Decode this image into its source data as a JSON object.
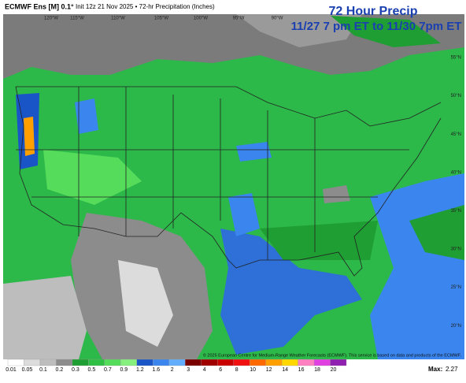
{
  "header": {
    "title": "ECMWF Ens [M] 0.1°",
    "subtitle": "Init 12z 21 Nov 2025 • 72-hr Precipitation (Inches)"
  },
  "overlay": {
    "title": "72 Hour Precip",
    "period": "11/27 7 pm ET to 11/30 7pm ET"
  },
  "longitudes": [
    "120°W",
    "115°W",
    "110°W",
    "105°W",
    "100°W",
    "95°W",
    "90°W"
  ],
  "latitudes": [
    "55°N",
    "50°N",
    "45°N",
    "40°N",
    "35°N",
    "30°N",
    "25°N",
    "20°N"
  ],
  "copyright": "© 2025 European Centre for Medium-Range Weather Forecasts (ECMWF). This service is based on data and products of the ECMWF.",
  "colorbar": [
    {
      "label": "0.01",
      "color": "#ffffff"
    },
    {
      "label": "0.05",
      "color": "#dcdcdc"
    },
    {
      "label": "0.1",
      "color": "#bdbdbd"
    },
    {
      "label": "0.2",
      "color": "#8c8c8c"
    },
    {
      "label": "0.3",
      "color": "#1f9e33"
    },
    {
      "label": "0.5",
      "color": "#2fc043"
    },
    {
      "label": "0.7",
      "color": "#55dc5a"
    },
    {
      "label": "0.9",
      "color": "#86f07e"
    },
    {
      "label": "1.2",
      "color": "#1a55c8"
    },
    {
      "label": "1.6",
      "color": "#3a85ee"
    },
    {
      "label": "2",
      "color": "#63aefc"
    },
    {
      "label": "3",
      "color": "#7a0000"
    },
    {
      "label": "4",
      "color": "#a00000"
    },
    {
      "label": "6",
      "color": "#c80000"
    },
    {
      "label": "8",
      "color": "#f01010"
    },
    {
      "label": "10",
      "color": "#ff6a00"
    },
    {
      "label": "12",
      "color": "#ffa000"
    },
    {
      "label": "14",
      "color": "#ffd800"
    },
    {
      "label": "16",
      "color": "#ff80c0"
    },
    {
      "label": "18",
      "color": "#e040e0"
    },
    {
      "label": "20",
      "color": "#9020b0"
    }
  ],
  "max_label": "Max:",
  "max_value": 2.27
}
